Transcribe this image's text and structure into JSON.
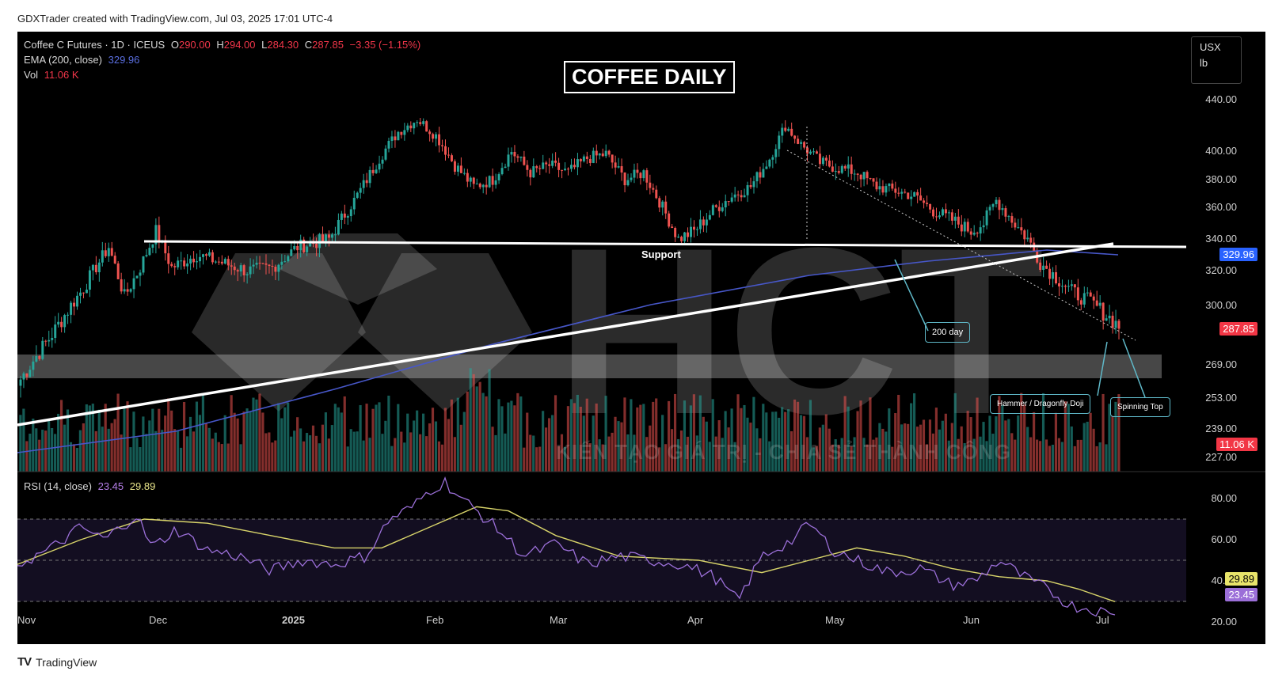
{
  "credit": "GDXTrader created with TradingView.com, Jul 03, 2025 17:01 UTC-4",
  "footer": {
    "brand": "TradingView",
    "logo": "TV"
  },
  "legend": {
    "symbol": "Coffee C Futures · 1D · ICEUS",
    "o_label": "O",
    "o": "290.00",
    "h_label": "H",
    "h": "294.00",
    "l_label": "L",
    "l": "284.30",
    "c_label": "C",
    "c": "287.85",
    "change": "−3.35 (−1.15%)",
    "ema_label": "EMA (200, close)",
    "ema": "329.96",
    "vol_label": "Vol",
    "vol": "11.06 K",
    "rsi_label": "RSI (14, close)",
    "rsi": "23.45",
    "rsi_ma": "29.89"
  },
  "title": "COFFEE DAILY",
  "units": {
    "currency": "USX",
    "unit": "lb"
  },
  "watermark": {
    "letters": "HCT",
    "tagline": "KIẾN TẠO GIÁ TRỊ - CHIA SẺ THÀNH CÔNG"
  },
  "annotations": {
    "support": "Support",
    "day200": "200 day",
    "hammer": "Hammer / Dragonfly Doji",
    "spinning": "Spinning Top"
  },
  "colors": {
    "up": "#26a69a",
    "down": "#ef5350",
    "ema": "#4757c9",
    "rsi": "#9b6fd8",
    "rsi_ma": "#d8d46a"
  },
  "chart_data": {
    "type": "candlestick",
    "x_labels": [
      "Nov",
      "Dec",
      "2025",
      "Feb",
      "Mar",
      "Apr",
      "May",
      "Jun",
      "Jul"
    ],
    "price_axis": {
      "ticks": [
        "440.00",
        "400.00",
        "380.00",
        "360.00",
        "340.00",
        "320.00",
        "300.00",
        "269.00",
        "253.00",
        "239.00",
        "227.00"
      ],
      "values": [
        440,
        400,
        380,
        360,
        340,
        320,
        300,
        269,
        253,
        239,
        227
      ]
    },
    "rsi_axis": {
      "ticks": [
        "80.00",
        "60.00",
        "40.00",
        "20.00"
      ],
      "values": [
        80,
        60,
        40,
        20
      ],
      "bands": [
        70,
        50,
        30
      ]
    },
    "price_tags": {
      "ema": "329.96",
      "last": "287.85",
      "volume": "11.06 K"
    },
    "rsi_tags": {
      "ma": "29.89",
      "rsi": "23.45"
    },
    "last_close": 287.85,
    "ema_last": 329.96,
    "support_level": 335,
    "rsi_last": 23.45,
    "rsi_ma_last": 29.89
  }
}
